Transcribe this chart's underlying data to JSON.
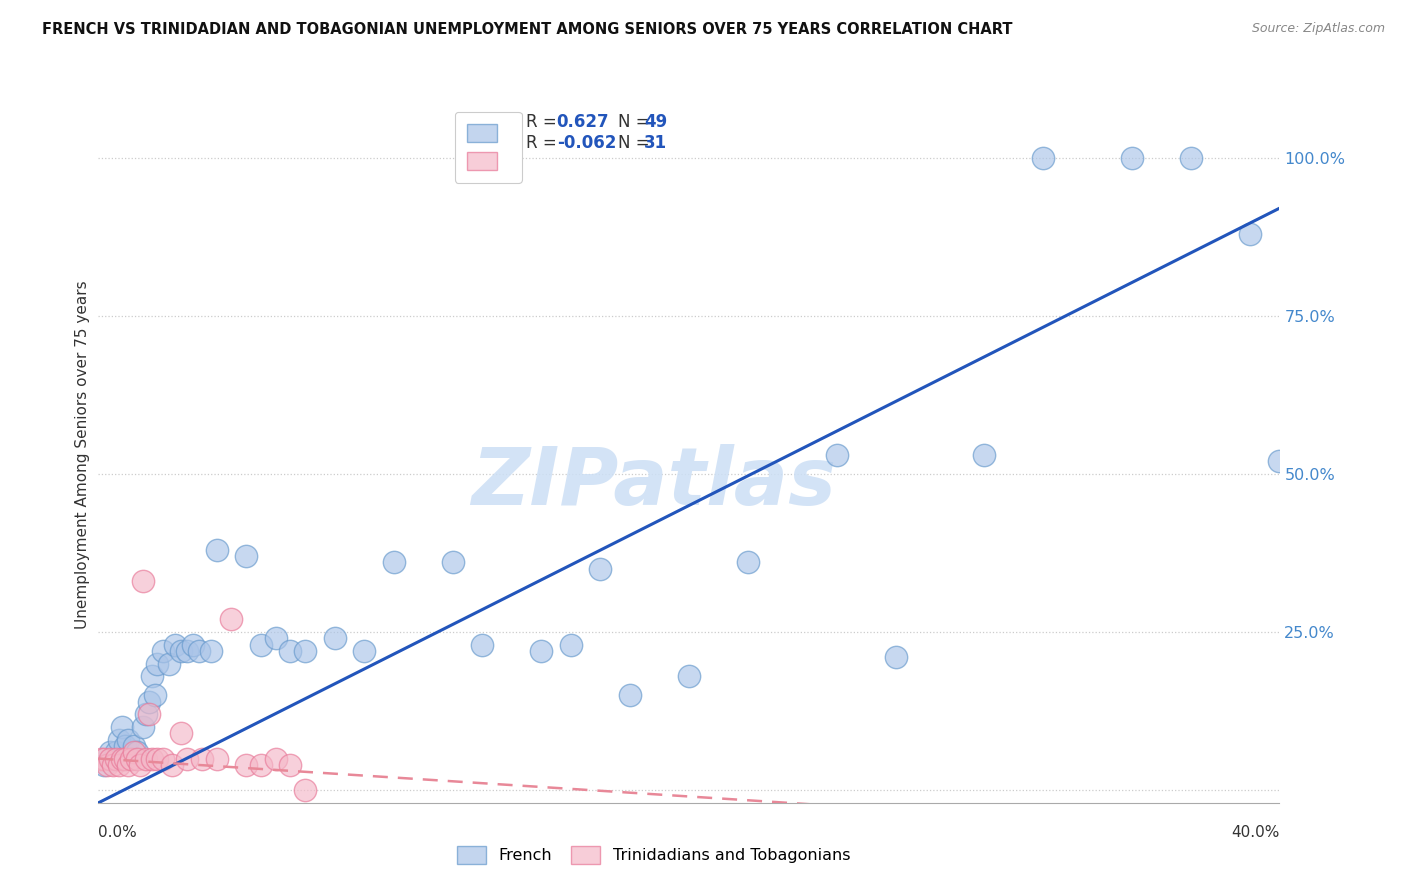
{
  "title": "FRENCH VS TRINIDADIAN AND TOBAGONIAN UNEMPLOYMENT AMONG SENIORS OVER 75 YEARS CORRELATION CHART",
  "source": "Source: ZipAtlas.com",
  "ylabel": "Unemployment Among Seniors over 75 years",
  "ytick_values": [
    0.0,
    0.25,
    0.5,
    0.75,
    1.0
  ],
  "ytick_labels_right": [
    "",
    "25.0%",
    "50.0%",
    "75.0%",
    "100.0%"
  ],
  "xlim": [
    0,
    0.4
  ],
  "ylim": [
    -0.02,
    1.08
  ],
  "R_french": 0.627,
  "N_french": 49,
  "R_trini": -0.062,
  "N_trini": 31,
  "french_scatter_color": "#aac4e8",
  "french_scatter_edge": "#6699cc",
  "trini_scatter_color": "#f4b8c8",
  "trini_scatter_edge": "#e87898",
  "french_line_color": "#2255bb",
  "trini_line_color": "#e88898",
  "legend_french": "French",
  "legend_trini": "Trinidadians and Tobagonians",
  "watermark": "ZIPatlas",
  "watermark_color": "#ccdff5",
  "title_color": "#111111",
  "source_color": "#888888",
  "ylabel_color": "#333333",
  "tick_color": "#4488cc",
  "grid_color": "#cccccc",
  "french_line_intercept": -0.02,
  "french_line_slope": 2.35,
  "trini_line_intercept": 0.05,
  "trini_line_slope": -0.3,
  "french_x": [
    0.002,
    0.004,
    0.005,
    0.006,
    0.007,
    0.008,
    0.009,
    0.01,
    0.012,
    0.013,
    0.015,
    0.016,
    0.017,
    0.018,
    0.019,
    0.02,
    0.022,
    0.024,
    0.026,
    0.028,
    0.03,
    0.032,
    0.034,
    0.038,
    0.04,
    0.05,
    0.055,
    0.06,
    0.065,
    0.07,
    0.08,
    0.09,
    0.1,
    0.12,
    0.13,
    0.15,
    0.16,
    0.17,
    0.18,
    0.2,
    0.22,
    0.25,
    0.27,
    0.3,
    0.32,
    0.35,
    0.37,
    0.39,
    0.4
  ],
  "french_y": [
    0.04,
    0.06,
    0.05,
    0.06,
    0.08,
    0.1,
    0.07,
    0.08,
    0.07,
    0.06,
    0.1,
    0.12,
    0.14,
    0.18,
    0.15,
    0.2,
    0.22,
    0.2,
    0.23,
    0.22,
    0.22,
    0.23,
    0.22,
    0.22,
    0.38,
    0.37,
    0.23,
    0.24,
    0.22,
    0.22,
    0.24,
    0.22,
    0.36,
    0.36,
    0.23,
    0.22,
    0.23,
    0.35,
    0.15,
    0.18,
    0.36,
    0.53,
    0.21,
    0.53,
    1.0,
    1.0,
    1.0,
    0.88,
    0.52
  ],
  "trini_x": [
    0.001,
    0.002,
    0.003,
    0.004,
    0.005,
    0.006,
    0.007,
    0.008,
    0.009,
    0.01,
    0.011,
    0.012,
    0.013,
    0.014,
    0.015,
    0.016,
    0.017,
    0.018,
    0.02,
    0.022,
    0.025,
    0.028,
    0.03,
    0.035,
    0.04,
    0.045,
    0.05,
    0.055,
    0.06,
    0.065,
    0.07
  ],
  "trini_y": [
    0.05,
    0.05,
    0.04,
    0.05,
    0.04,
    0.05,
    0.04,
    0.05,
    0.05,
    0.04,
    0.05,
    0.06,
    0.05,
    0.04,
    0.33,
    0.05,
    0.12,
    0.05,
    0.05,
    0.05,
    0.04,
    0.09,
    0.05,
    0.05,
    0.05,
    0.27,
    0.04,
    0.04,
    0.05,
    0.04,
    0.0
  ]
}
